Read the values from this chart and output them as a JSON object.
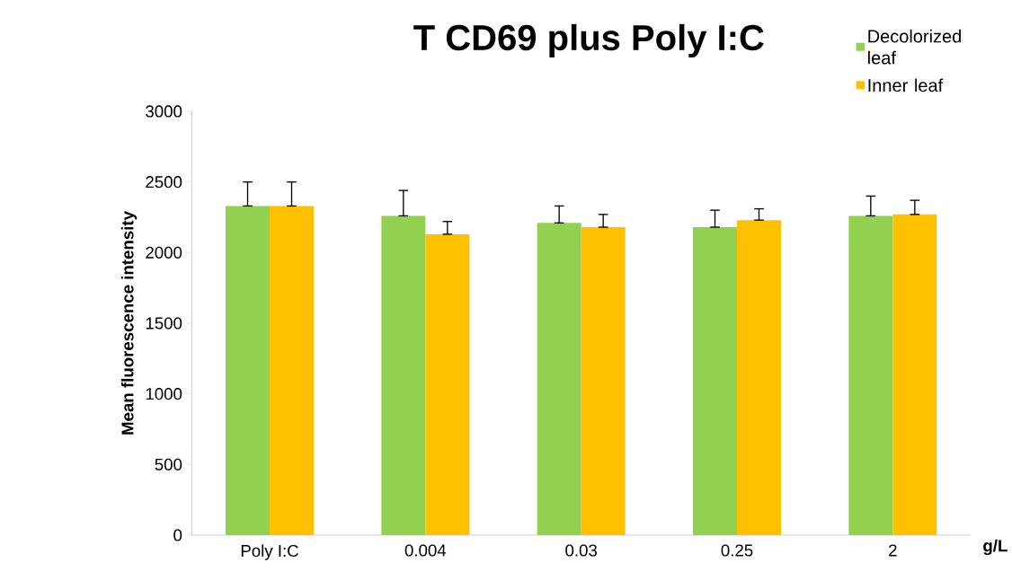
{
  "chart_data": {
    "type": "bar",
    "title": "T CD69 plus Poly I:C",
    "xlabel": "g/L",
    "ylabel": "Mean fluorescence intensity",
    "categories": [
      "Poly I:C",
      "0.004",
      "0.03",
      "0.25",
      "2"
    ],
    "series": [
      {
        "name": "Decolorized leaf",
        "color": "#92d050",
        "values": [
          2330,
          2260,
          2210,
          2180,
          2260
        ],
        "errors": [
          [
            2330,
            2500
          ],
          [
            2260,
            2440
          ],
          [
            2210,
            2330
          ],
          [
            2180,
            2300
          ],
          [
            2260,
            2400
          ]
        ]
      },
      {
        "name": "Inner leaf",
        "color": "#ffc000",
        "values": [
          2330,
          2130,
          2180,
          2230,
          2270
        ],
        "errors": [
          [
            2330,
            2500
          ],
          [
            2130,
            2220
          ],
          [
            2180,
            2270
          ],
          [
            2230,
            2310
          ],
          [
            2270,
            2370
          ]
        ]
      }
    ],
    "ylim": [
      0,
      3000
    ],
    "yticks": [
      0,
      500,
      1000,
      1500,
      2000,
      2500,
      3000
    ],
    "legend": "top right"
  }
}
